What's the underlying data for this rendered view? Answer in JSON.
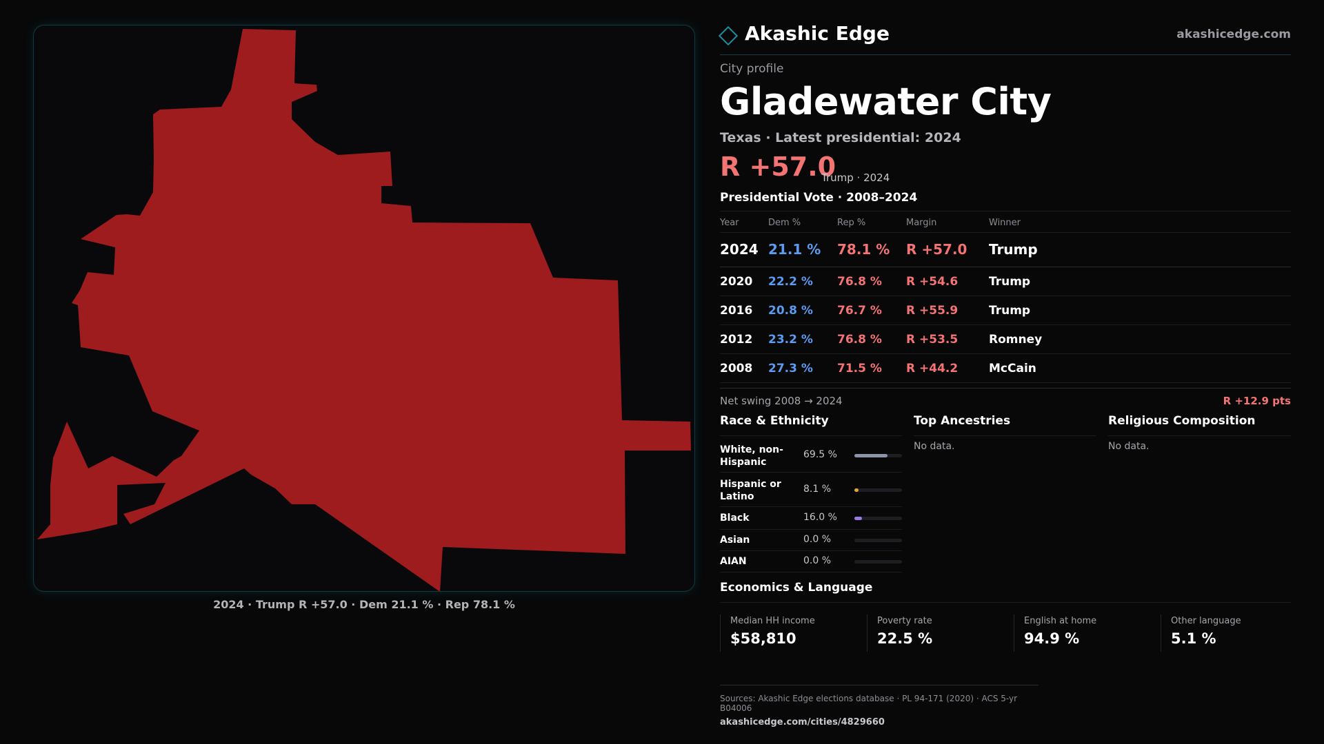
{
  "brand": {
    "name": "Akashic Edge",
    "url": "akashicedge.com",
    "accent": "#1a8fa0"
  },
  "profile": {
    "kicker": "City profile",
    "title": "Gladewater City",
    "subhead": "Texas · Latest presidential: 2024",
    "margin_big": "R +57.0",
    "margin_note": "Trump · 2024"
  },
  "map": {
    "fill_color": "#9e1c1e",
    "caption": "2024 · Trump R +57.0 · Dem 21.1 % · Rep 78.1 %"
  },
  "vote": {
    "title": "Presidential Vote · 2008–2024",
    "headers": {
      "year": "Year",
      "dem": "Dem %",
      "rep": "Rep %",
      "margin": "Margin",
      "winner": "Winner"
    },
    "rows": [
      {
        "year": "2024",
        "dem": "21.1 %",
        "rep": "78.1 %",
        "margin": "R +57.0",
        "winner": "Trump"
      },
      {
        "year": "2020",
        "dem": "22.2 %",
        "rep": "76.8 %",
        "margin": "R +54.6",
        "winner": "Trump"
      },
      {
        "year": "2016",
        "dem": "20.8 %",
        "rep": "76.7 %",
        "margin": "R +55.9",
        "winner": "Trump"
      },
      {
        "year": "2012",
        "dem": "23.2 %",
        "rep": "76.8 %",
        "margin": "R +53.5",
        "winner": "Romney"
      },
      {
        "year": "2008",
        "dem": "27.3 %",
        "rep": "71.5 %",
        "margin": "R +44.2",
        "winner": "McCain"
      }
    ],
    "swing_label": "Net swing 2008 → 2024",
    "swing_value": "R +12.9 pts",
    "dem_color": "#5b9bf0",
    "rep_color": "#f47373"
  },
  "race": {
    "title": "Race & Ethnicity",
    "items": [
      {
        "label": "White, non-Hispanic",
        "value": "69.5 %",
        "share": 0.695,
        "color": "#8c95a8"
      },
      {
        "label": "Hispanic or Latino",
        "value": "8.1 %",
        "share": 0.081,
        "color": "#e3a33b"
      },
      {
        "label": "Black",
        "value": "16.0 %",
        "share": 0.16,
        "color": "#9a7be6"
      },
      {
        "label": "Asian",
        "value": "0.0 %",
        "share": 0.0,
        "color": "#5b9bf0"
      },
      {
        "label": "AIAN",
        "value": "0.0 %",
        "share": 0.0,
        "color": "#5b9bf0"
      }
    ]
  },
  "ancestries": {
    "title": "Top Ancestries",
    "empty": "No data."
  },
  "religion": {
    "title": "Religious Composition",
    "empty": "No data."
  },
  "economics": {
    "title": "Economics & Language",
    "cells": [
      {
        "label": "Median HH income",
        "value": "$58,810"
      },
      {
        "label": "Poverty rate",
        "value": "22.5 %"
      },
      {
        "label": "English at home",
        "value": "94.9 %"
      },
      {
        "label": "Other language",
        "value": "5.1 %"
      }
    ]
  },
  "sources": {
    "text": "Sources: Akashic Edge elections database · PL 94-171 (2020) · ACS 5-yr B04006",
    "url": "akashicedge.com/cities/4829660"
  }
}
